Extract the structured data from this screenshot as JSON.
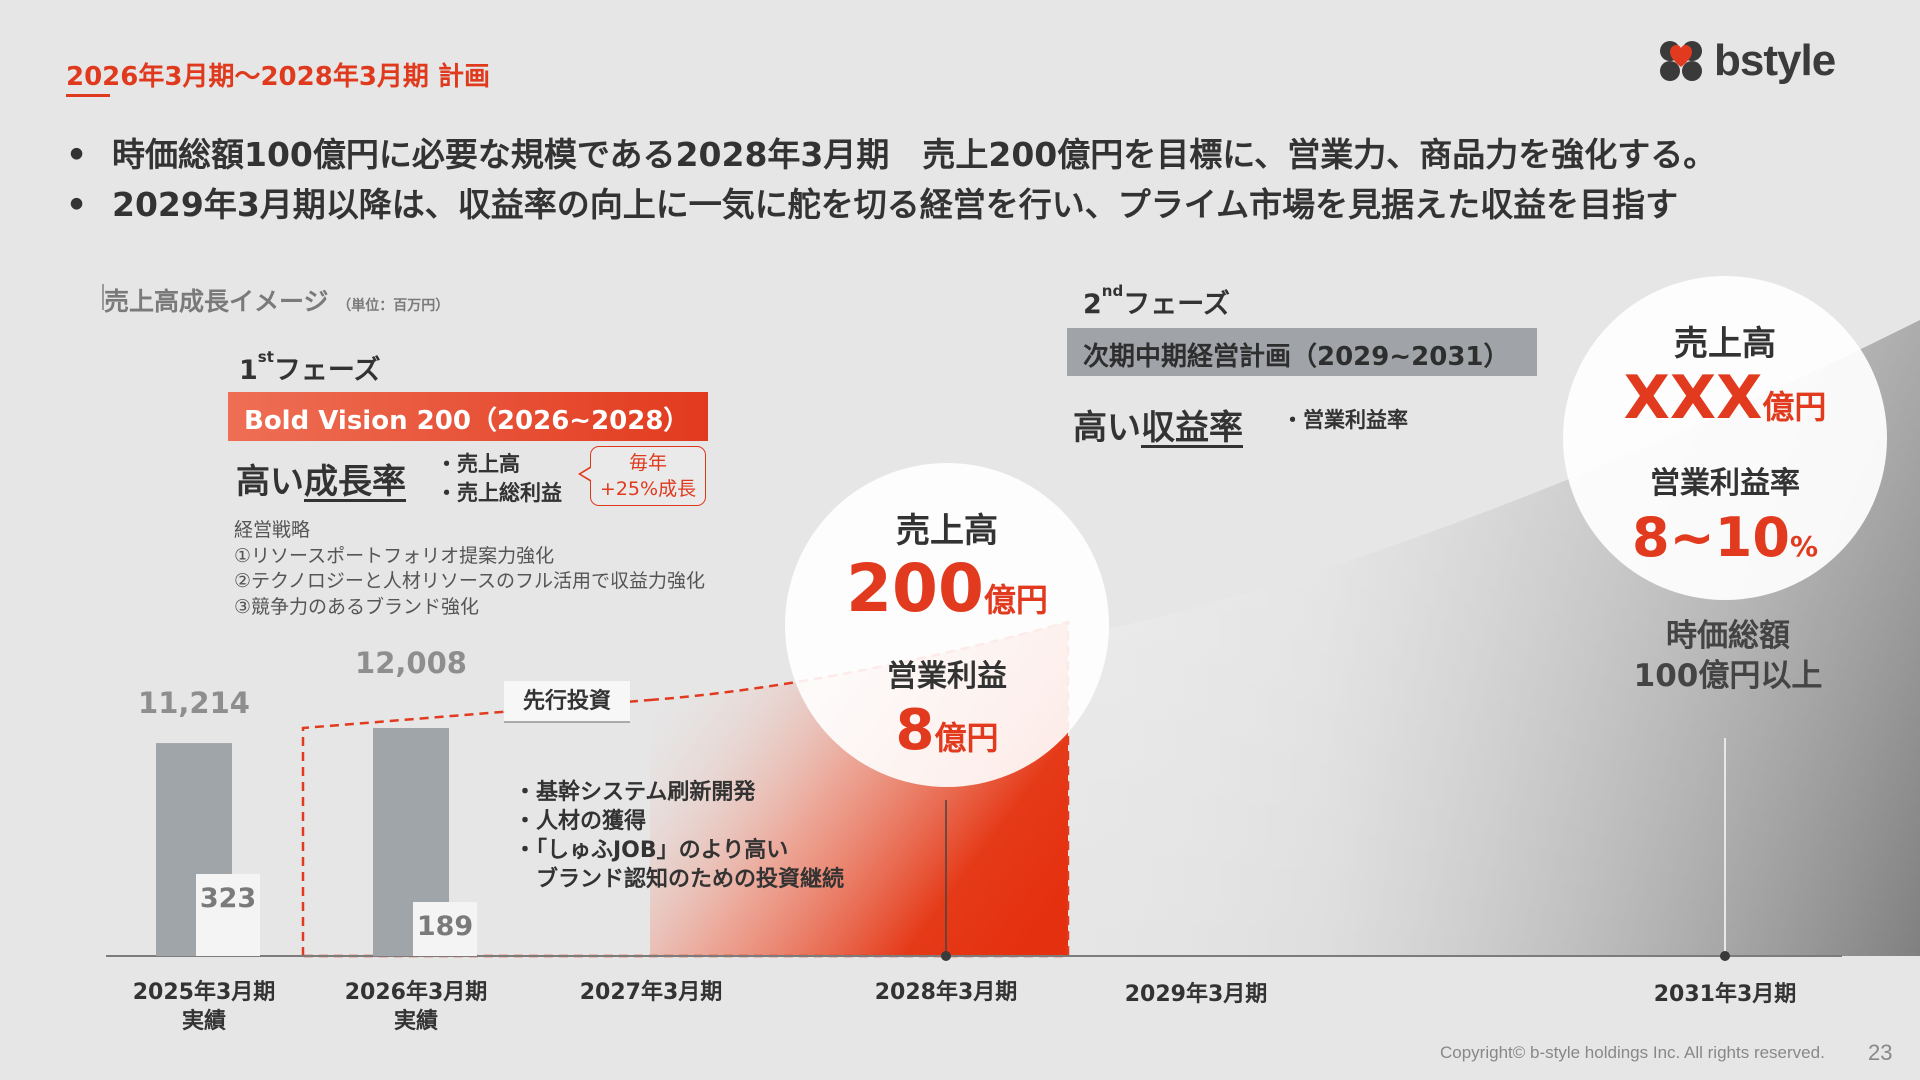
{
  "header": {
    "title": "2026年3月期〜2028年3月期 計画"
  },
  "logo": {
    "text": "bstyle",
    "icon": "heart-clover-icon"
  },
  "bullets": [
    "時価総額100億円に必要な規模である2028年3月期　売上200億円を目標に、営業力、商品力を強化する。",
    "2029年3月期以降は、収益率の向上に一気に舵を切る経営を行い、プライム市場を見据えた収益を目指す"
  ],
  "section": {
    "title": "売上高成長イメージ",
    "unit": "（単位：百万円）"
  },
  "phase1": {
    "label_num": "1",
    "label_sup": "st",
    "label_text": "フェーズ",
    "plan": "Bold Vision 200（2026~2028）",
    "theme_prefix": "高い",
    "theme_underlined": "成長率",
    "metrics": [
      "・売上高",
      "・売上総利益"
    ],
    "bubble_line1": "毎年",
    "bubble_line2": "+25%成長",
    "strategy_title": "経営戦略",
    "strategy_items": [
      "①リソースポートフォリオ提案力強化",
      "②テクノロジーと人材リソースのフル活用で収益力強化",
      "③競争力のあるブランド強化"
    ]
  },
  "phase2": {
    "label_num": "2",
    "label_sup": "nd",
    "label_text": "フェーズ",
    "plan": "次期中期経営計画（2029~2031）",
    "theme_prefix": "高い",
    "theme_underlined": "収益率",
    "metric": "・営業利益率"
  },
  "investment": {
    "tag": "先行投資",
    "items": [
      "・基幹システム刷新開発",
      "・人材の獲得",
      "・「しゅふJOB」のより高い",
      "　ブランド認知のための投資継続"
    ]
  },
  "target_2028": {
    "sales_label": "売上高",
    "sales_value": "200",
    "sales_unit": "億円",
    "profit_label": "営業利益",
    "profit_value": "8",
    "profit_unit": "億円"
  },
  "target_2031": {
    "sales_label": "売上高",
    "sales_value": "XXX",
    "sales_unit": "億円",
    "margin_label": "営業利益率",
    "margin_value": "8~10",
    "margin_unit": "%",
    "mktcap_line1": "時価総額",
    "mktcap_line2": "100億円以上"
  },
  "chart_data": {
    "type": "bar",
    "categories": [
      "2025年3月期",
      "2026年3月期"
    ],
    "series": [
      {
        "name": "売上高",
        "values": [
          11214,
          12008
        ]
      },
      {
        "name": "営業利益",
        "values": [
          323,
          189
        ]
      }
    ],
    "value_labels": [
      "11,214",
      "12,008"
    ],
    "sub_labels": [
      "323",
      "189"
    ],
    "targets": [
      {
        "period": "2028年3月期",
        "sales": "200億円",
        "operating_profit": "8億円"
      },
      {
        "period": "2031年3月期",
        "sales": "XXX億円",
        "operating_margin": "8~10%"
      }
    ],
    "x_labels": [
      {
        "line1": "2025年3月期",
        "line2": "実績"
      },
      {
        "line1": "2026年3月期",
        "line2": "実績"
      },
      {
        "line1": "2027年3月期",
        "line2": ""
      },
      {
        "line1": "2028年3月期",
        "line2": ""
      },
      {
        "line1": "2029年3月期",
        "line2": ""
      },
      {
        "line1": "2031年3月期",
        "line2": ""
      }
    ],
    "colors": {
      "bar": "#a0a5aa",
      "accent": "#e23a1e"
    }
  },
  "footer": {
    "copyright": "Copyright© b-style holdings Inc. All rights reserved.",
    "page": "23"
  }
}
